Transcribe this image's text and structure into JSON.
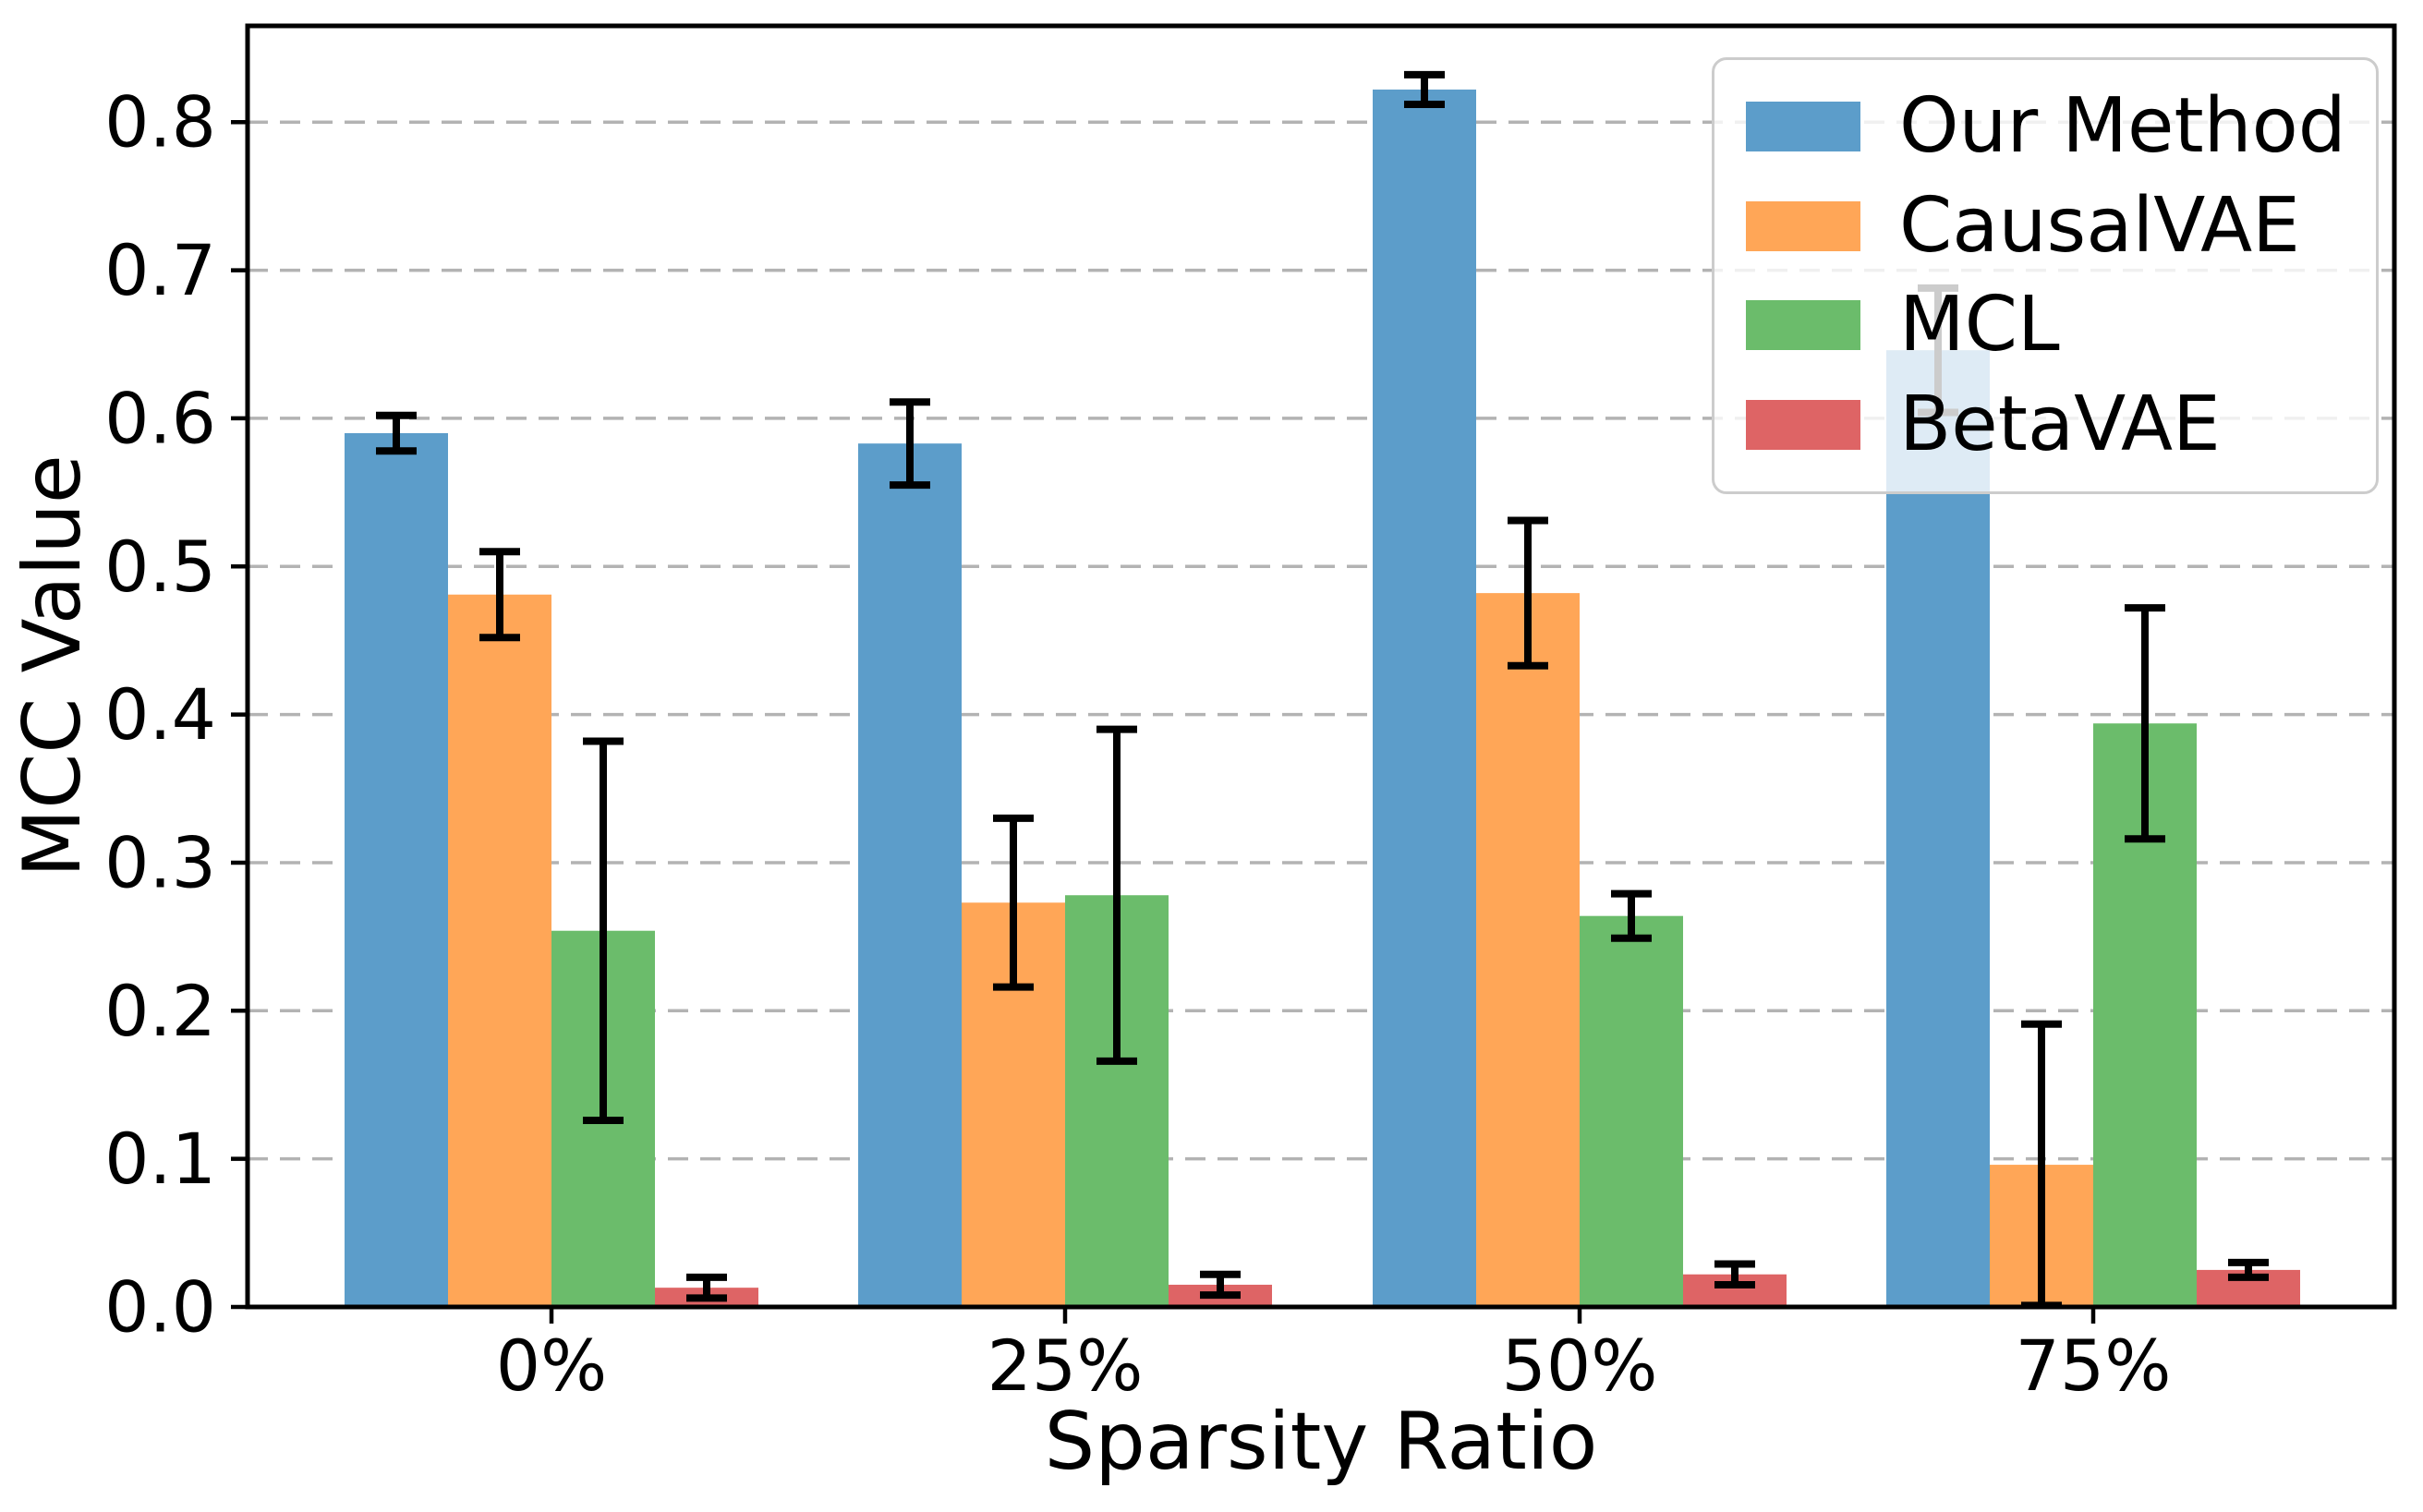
{
  "figure": {
    "background": "#ffffff",
    "axis_color": "#000000",
    "grid_color": "#b3b3b3",
    "legend_border_color": "#cccccc",
    "error_bar_color": "#000000"
  },
  "chart_data": {
    "type": "bar",
    "title": "",
    "xlabel": "Sparsity Ratio",
    "ylabel": "MCC Value",
    "categories": [
      "0%",
      "25%",
      "50%",
      "75%"
    ],
    "y_ticks": [
      "0.0",
      "0.1",
      "0.2",
      "0.3",
      "0.4",
      "0.5",
      "0.6",
      "0.7",
      "0.8"
    ],
    "ylim": [
      0,
      0.865
    ],
    "grid": "horizontal-dashed",
    "legend_position": "upper right",
    "series": [
      {
        "name": "Our Method",
        "color": "#5C9DCA",
        "values": [
          0.59,
          0.583,
          0.822,
          0.646
        ],
        "errors": [
          0.012,
          0.028,
          0.01,
          0.042
        ]
      },
      {
        "name": "CausalVAE",
        "color": "#FFA657",
        "values": [
          0.481,
          0.273,
          0.482,
          0.096
        ],
        "errors": [
          0.029,
          0.057,
          0.049,
          0.095
        ]
      },
      {
        "name": "MCL",
        "color": "#6BBC6B",
        "values": [
          0.254,
          0.278,
          0.264,
          0.394
        ],
        "errors": [
          0.128,
          0.112,
          0.015,
          0.078
        ]
      },
      {
        "name": "BetaVAE",
        "color": "#DE6465",
        "values": [
          0.013,
          0.015,
          0.022,
          0.025
        ],
        "errors": [
          0.007,
          0.007,
          0.007,
          0.005
        ]
      }
    ]
  }
}
